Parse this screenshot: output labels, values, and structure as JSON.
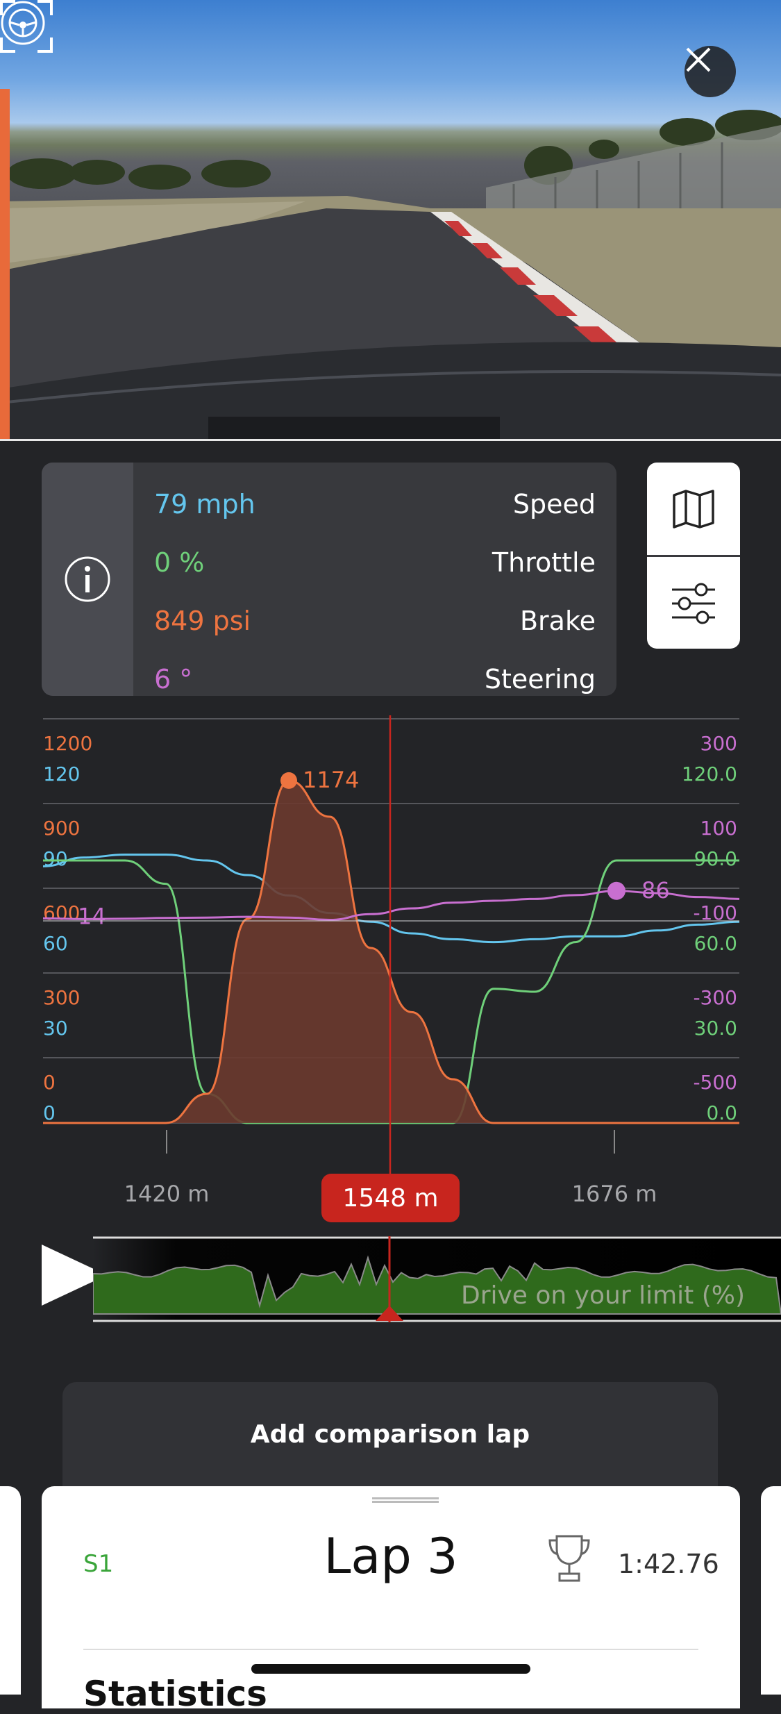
{
  "info": {
    "speed_value": "79 mph",
    "speed_label": "Speed",
    "throttle_value": "0 %",
    "throttle_label": "Throttle",
    "brake_value": "849 psi",
    "brake_label": "Brake",
    "steering_value": "6 °",
    "steering_label": "Steering"
  },
  "colors": {
    "speed": "#64c6ee",
    "throttle": "#6fd07a",
    "brake": "#ee7440",
    "steering": "#c86fd0",
    "cursor": "#c8251e"
  },
  "chart_data": {
    "type": "line",
    "x_ticks": [
      "1420 m",
      "1676 m"
    ],
    "cursor_label": "1548 m",
    "left_axis_brake_ticks": [
      "1200",
      "900",
      "600",
      "300",
      "0"
    ],
    "left_axis_speed_ticks": [
      "120",
      "90",
      "60",
      "30",
      "0"
    ],
    "right_axis_steering_ticks": [
      "300",
      "100",
      "-100",
      "-300",
      "-500"
    ],
    "right_axis_throttle_ticks": [
      "120.0",
      "90.0",
      "60.0",
      "30.0",
      "0.0"
    ],
    "annotations": {
      "brake_peak": "1174",
      "steering_start": "14",
      "steering_marker": "86"
    },
    "series": [
      {
        "name": "Speed",
        "axis": "speed",
        "values": [
          88,
          91,
          92,
          92,
          90,
          85,
          78,
          72,
          69,
          65,
          63,
          62,
          63,
          64,
          64,
          66,
          68,
          69
        ]
      },
      {
        "name": "Throttle",
        "axis": "throttle",
        "values": [
          90,
          90,
          90,
          82,
          10,
          0,
          0,
          0,
          0,
          0,
          0,
          46,
          45,
          62,
          90,
          90,
          90,
          90
        ]
      },
      {
        "name": "Brake",
        "axis": "brake",
        "values": [
          0,
          0,
          0,
          0,
          100,
          700,
          1174,
          1050,
          600,
          380,
          150,
          0,
          0,
          0,
          0,
          0,
          0,
          0
        ]
      },
      {
        "name": "Steering",
        "axis": "steering",
        "values": [
          14,
          12,
          13,
          15,
          16,
          18,
          16,
          10,
          25,
          40,
          55,
          60,
          65,
          75,
          86,
          80,
          70,
          65
        ]
      }
    ]
  },
  "scrubber": {
    "label": "Drive on your limit (%)"
  },
  "compare": {
    "label": "Add comparison lap"
  },
  "lap": {
    "sector": "S1",
    "title": "Lap 3",
    "time": "1:42.76",
    "section_title": "Statistics"
  }
}
